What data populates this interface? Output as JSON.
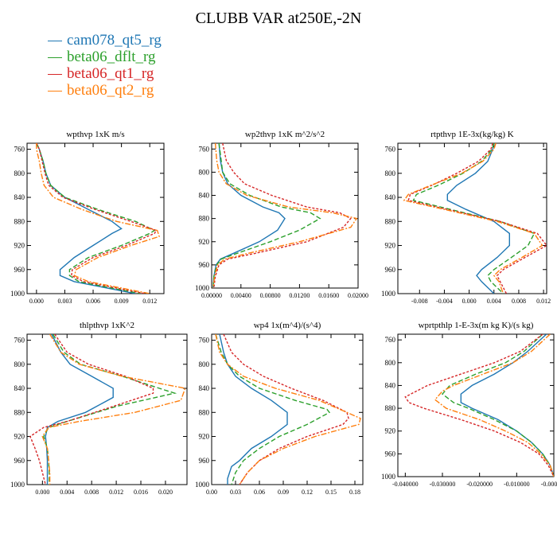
{
  "title": "CLUBB VAR at250E,-2N",
  "colors": {
    "cam078_qt5_rg": "#1f77b4",
    "beta06_dflt_rg": "#2ca02c",
    "beta06_qt1_rg": "#d62728",
    "beta06_qt2_rg": "#ff7f0e"
  },
  "legend": [
    {
      "name": "cam078_qt5_rg",
      "color": "#1f77b4"
    },
    {
      "name": "beta06_dflt_rg",
      "color": "#2ca02c"
    },
    {
      "name": "beta06_qt1_rg",
      "color": "#d62728"
    },
    {
      "name": "beta06_qt2_rg",
      "color": "#ff7f0e"
    }
  ],
  "chart_data": [
    {
      "type": "line",
      "title": "wpthvp   1xK m/s",
      "xlim": [
        -0.001,
        0.0135
      ],
      "xticks": [
        0.0,
        0.003,
        0.006,
        0.009,
        0.012
      ],
      "xticklabels": [
        "0.000",
        "0.003",
        "0.006",
        "0.009",
        "0.012"
      ],
      "ylim": [
        1000,
        750
      ],
      "yticks": [
        760,
        800,
        840,
        880,
        920,
        960,
        1000
      ],
      "series": [
        {
          "name": "cam078_qt5_rg",
          "p": [
            750,
            760,
            780,
            800,
            820,
            840,
            860,
            880,
            892,
            900,
            920,
            940,
            960,
            970,
            980,
            1000
          ],
          "x": [
            0.0,
            0.0003,
            0.0007,
            0.001,
            0.0015,
            0.003,
            0.0055,
            0.008,
            0.009,
            0.008,
            0.006,
            0.004,
            0.0025,
            0.0025,
            0.004,
            0.0105
          ]
        },
        {
          "name": "beta06_dflt_rg",
          "p": [
            750,
            760,
            780,
            800,
            820,
            840,
            860,
            880,
            895,
            900,
            920,
            940,
            960,
            970,
            980,
            1000
          ],
          "x": [
            0.0,
            0.0003,
            0.0007,
            0.001,
            0.0015,
            0.003,
            0.0065,
            0.0105,
            0.0125,
            0.012,
            0.009,
            0.0055,
            0.0035,
            0.0035,
            0.0045,
            0.011
          ]
        },
        {
          "name": "beta06_qt1_rg",
          "p": [
            750,
            760,
            780,
            800,
            820,
            840,
            860,
            880,
            895,
            900,
            920,
            940,
            960,
            970,
            980,
            1000
          ],
          "x": [
            0.0,
            0.0003,
            0.0006,
            0.0009,
            0.0013,
            0.0028,
            0.0062,
            0.01,
            0.0127,
            0.0125,
            0.0095,
            0.006,
            0.0038,
            0.0037,
            0.005,
            0.0115
          ]
        },
        {
          "name": "beta06_qt2_rg",
          "p": [
            750,
            760,
            780,
            800,
            820,
            840,
            860,
            880,
            895,
            905,
            920,
            940,
            960,
            970,
            980,
            1000
          ],
          "x": [
            0.0,
            0.0,
            0.0003,
            0.0005,
            0.0008,
            0.0018,
            0.0048,
            0.0085,
            0.0128,
            0.013,
            0.01,
            0.0065,
            0.0042,
            0.004,
            0.0055,
            0.012
          ]
        }
      ]
    },
    {
      "type": "line",
      "title": "wp2thvp   1xK m^2/s^2",
      "xlim": [
        0.0,
        0.02
      ],
      "xticks": [
        0.0,
        0.004,
        0.008,
        0.012,
        0.016,
        0.02
      ],
      "xticklabels": [
        "0.00000",
        "0.00400",
        "0.00800",
        "0.01200",
        "0.01600",
        "0.02000"
      ],
      "ylim": [
        1000,
        750
      ],
      "yticks": [
        760,
        800,
        840,
        880,
        920,
        960,
        1000
      ],
      "series": [
        {
          "name": "cam078_qt5_rg",
          "p": [
            750,
            780,
            800,
            820,
            840,
            860,
            870,
            880,
            900,
            920,
            940,
            950,
            960,
            980,
            1000
          ],
          "x": [
            0.001,
            0.0012,
            0.0015,
            0.0022,
            0.004,
            0.007,
            0.0092,
            0.01,
            0.009,
            0.0065,
            0.003,
            0.0012,
            0.0006,
            0.0003,
            0.0002
          ]
        },
        {
          "name": "beta06_dflt_rg",
          "p": [
            750,
            780,
            800,
            820,
            840,
            860,
            870,
            880,
            900,
            920,
            940,
            950,
            960,
            980,
            1000
          ],
          "x": [
            0.001,
            0.0013,
            0.0015,
            0.0025,
            0.0052,
            0.0095,
            0.0135,
            0.0148,
            0.012,
            0.008,
            0.0035,
            0.0013,
            0.0007,
            0.0003,
            0.0002
          ]
        },
        {
          "name": "beta06_qt1_rg",
          "p": [
            750,
            780,
            800,
            820,
            840,
            860,
            870,
            880,
            895,
            920,
            940,
            950,
            960,
            980,
            1000
          ],
          "x": [
            0.0015,
            0.002,
            0.003,
            0.0045,
            0.0082,
            0.013,
            0.0175,
            0.019,
            0.018,
            0.013,
            0.006,
            0.0022,
            0.001,
            0.0005,
            0.0003
          ]
        },
        {
          "name": "beta06_qt2_rg",
          "p": [
            750,
            780,
            800,
            820,
            840,
            860,
            870,
            880,
            895,
            920,
            940,
            950,
            960,
            980,
            1000
          ],
          "x": [
            0.0005,
            0.0007,
            0.001,
            0.002,
            0.0048,
            0.0105,
            0.0165,
            0.0198,
            0.019,
            0.012,
            0.005,
            0.0018,
            0.0008,
            0.0004,
            0.0002
          ]
        }
      ]
    },
    {
      "type": "line",
      "title": "rtpthvp   1E-3x(kg/kg) K",
      "xlim": [
        -0.0115,
        0.0125
      ],
      "xticks": [
        -0.008,
        -0.004,
        0.0,
        0.004,
        0.008,
        0.012
      ],
      "xticklabels": [
        "-0.008",
        "-0.004",
        "0.000",
        "0.004",
        "0.008",
        "0.012"
      ],
      "ylim": [
        1000,
        750
      ],
      "yticks": [
        760,
        800,
        840,
        880,
        920,
        960,
        1000
      ],
      "series": [
        {
          "name": "cam078_qt5_rg",
          "p": [
            750,
            760,
            780,
            800,
            820,
            835,
            845,
            860,
            880,
            900,
            920,
            940,
            960,
            970,
            980,
            1000
          ],
          "x": [
            0.004,
            0.0038,
            0.003,
            0.001,
            -0.002,
            -0.0035,
            -0.0035,
            -0.0005,
            0.004,
            0.0065,
            0.0065,
            0.0045,
            0.002,
            0.0012,
            0.002,
            0.004
          ]
        },
        {
          "name": "beta06_dflt_rg",
          "p": [
            750,
            760,
            780,
            800,
            820,
            835,
            845,
            860,
            880,
            900,
            920,
            940,
            960,
            970,
            980,
            1000
          ],
          "x": [
            0.004,
            0.0037,
            0.002,
            -0.001,
            -0.005,
            -0.0085,
            -0.009,
            -0.003,
            0.005,
            0.0105,
            0.0095,
            0.0068,
            0.004,
            0.003,
            0.0035,
            0.0055
          ]
        },
        {
          "name": "beta06_qt1_rg",
          "p": [
            750,
            760,
            780,
            800,
            820,
            835,
            845,
            860,
            880,
            900,
            920,
            940,
            960,
            970,
            980,
            1000
          ],
          "x": [
            0.0038,
            0.0035,
            0.0015,
            -0.002,
            -0.006,
            -0.0095,
            -0.0098,
            -0.0035,
            0.005,
            0.011,
            0.0125,
            0.009,
            0.0055,
            0.0045,
            0.005,
            0.006
          ]
        },
        {
          "name": "beta06_qt2_rg",
          "p": [
            750,
            760,
            780,
            800,
            820,
            835,
            845,
            860,
            880,
            900,
            920,
            940,
            960,
            970,
            980,
            1000
          ],
          "x": [
            0.0043,
            0.004,
            0.0022,
            -0.0012,
            -0.0062,
            -0.0098,
            -0.0105,
            -0.004,
            0.0045,
            0.0105,
            0.0118,
            0.0085,
            0.005,
            0.004,
            0.0048,
            0.0055
          ]
        }
      ]
    },
    {
      "type": "line",
      "title": "thlpthvp   1xK^2",
      "xlim": [
        -0.0025,
        0.0235
      ],
      "xticks": [
        0.0,
        0.004,
        0.008,
        0.012,
        0.016,
        0.02
      ],
      "xticklabels": [
        "0.000",
        "0.004",
        "0.008",
        "0.012",
        "0.016",
        "0.020"
      ],
      "ylim": [
        1000,
        750
      ],
      "yticks": [
        760,
        800,
        840,
        880,
        920,
        960,
        1000
      ],
      "series": [
        {
          "name": "cam078_qt5_rg",
          "p": [
            750,
            780,
            800,
            820,
            840,
            855,
            880,
            895,
            905,
            920,
            940,
            960,
            980,
            1000
          ],
          "x": [
            0.0015,
            0.003,
            0.0045,
            0.008,
            0.0115,
            0.0115,
            0.007,
            0.0025,
            0.0008,
            0.0005,
            0.0007,
            0.0008,
            0.0008,
            0.0008
          ]
        },
        {
          "name": "beta06_dflt_rg",
          "p": [
            750,
            780,
            800,
            820,
            840,
            848,
            870,
            895,
            905,
            920,
            940,
            960,
            980,
            1000
          ],
          "x": [
            0.0017,
            0.0035,
            0.0062,
            0.013,
            0.019,
            0.0215,
            0.012,
            0.004,
            0.001,
            0.0002,
            0.0008,
            0.001,
            0.0011,
            0.0011
          ]
        },
        {
          "name": "beta06_qt1_rg",
          "p": [
            750,
            780,
            800,
            820,
            840,
            848,
            870,
            895,
            905,
            920,
            940,
            960,
            980,
            1000
          ],
          "x": [
            0.002,
            0.004,
            0.0075,
            0.0135,
            0.018,
            0.018,
            0.0115,
            0.004,
            0.0002,
            -0.002,
            -0.0012,
            -0.0005,
            0.0,
            0.0005
          ]
        },
        {
          "name": "beta06_qt2_rg",
          "p": [
            750,
            780,
            800,
            820,
            840,
            860,
            880,
            895,
            905,
            920,
            940,
            960,
            980,
            1000
          ],
          "x": [
            0.0012,
            0.003,
            0.006,
            0.013,
            0.0232,
            0.0225,
            0.015,
            0.006,
            0.001,
            0.0,
            0.0008,
            0.001,
            0.0012,
            0.0012
          ]
        }
      ]
    },
    {
      "type": "line",
      "title": "wp4   1x(m^4)/(s^4)",
      "xlim": [
        0.0,
        0.19
      ],
      "xticks": [
        0.0,
        0.03,
        0.06,
        0.09,
        0.12,
        0.15,
        0.18
      ],
      "xticklabels": [
        "0.00",
        "0.03",
        "0.06",
        "0.09",
        "0.12",
        "0.15",
        "0.18"
      ],
      "ylim": [
        1000,
        750
      ],
      "yticks": [
        760,
        800,
        840,
        880,
        920,
        960,
        1000
      ],
      "series": [
        {
          "name": "cam078_qt5_rg",
          "p": [
            750,
            780,
            800,
            820,
            840,
            860,
            880,
            900,
            920,
            940,
            960,
            970,
            990,
            1000
          ],
          "x": [
            0.01,
            0.015,
            0.02,
            0.03,
            0.05,
            0.075,
            0.095,
            0.095,
            0.075,
            0.05,
            0.035,
            0.025,
            0.02,
            0.02
          ]
        },
        {
          "name": "beta06_dflt_rg",
          "p": [
            750,
            780,
            800,
            820,
            840,
            860,
            875,
            880,
            900,
            920,
            940,
            960,
            980,
            1000
          ],
          "x": [
            0.005,
            0.012,
            0.02,
            0.035,
            0.06,
            0.105,
            0.145,
            0.148,
            0.12,
            0.085,
            0.06,
            0.04,
            0.03,
            0.025
          ]
        },
        {
          "name": "beta06_qt1_rg",
          "p": [
            750,
            780,
            800,
            820,
            840,
            860,
            880,
            890,
            900,
            920,
            940,
            960,
            980,
            1000
          ],
          "x": [
            0.015,
            0.025,
            0.04,
            0.065,
            0.1,
            0.14,
            0.17,
            0.172,
            0.165,
            0.12,
            0.085,
            0.06,
            0.045,
            0.035
          ]
        },
        {
          "name": "beta06_qt2_rg",
          "p": [
            750,
            780,
            800,
            820,
            840,
            860,
            880,
            890,
            900,
            920,
            940,
            960,
            980,
            1000
          ],
          "x": [
            0.005,
            0.01,
            0.02,
            0.04,
            0.08,
            0.135,
            0.17,
            0.187,
            0.185,
            0.13,
            0.09,
            0.06,
            0.045,
            0.035
          ]
        }
      ]
    },
    {
      "type": "line",
      "title": "wprtpthlp   1-E-3x(m kg K)/(s kg)",
      "xlim": [
        -0.042,
        0.0
      ],
      "xticks": [
        -0.04,
        -0.03,
        -0.02,
        -0.01,
        0.0
      ],
      "xticklabels": [
        "-0.040000",
        "-0.030000",
        "-0.020000",
        "-0.010000",
        "-0.000000"
      ],
      "ylim": [
        1000,
        750
      ],
      "yticks": [
        760,
        800,
        840,
        880,
        920,
        960,
        1000
      ],
      "series": [
        {
          "name": "cam078_qt5_rg",
          "p": [
            750,
            780,
            800,
            820,
            840,
            855,
            870,
            880,
            900,
            920,
            940,
            960,
            980,
            1000
          ],
          "x": [
            -0.002,
            -0.007,
            -0.011,
            -0.016,
            -0.022,
            -0.025,
            -0.025,
            -0.022,
            -0.015,
            -0.01,
            -0.006,
            -0.003,
            -0.001,
            0.0
          ]
        },
        {
          "name": "beta06_dflt_rg",
          "p": [
            750,
            780,
            800,
            820,
            840,
            855,
            870,
            880,
            900,
            920,
            940,
            960,
            980,
            1000
          ],
          "x": [
            -0.003,
            -0.008,
            -0.013,
            -0.021,
            -0.028,
            -0.03,
            -0.027,
            -0.023,
            -0.016,
            -0.01,
            -0.006,
            -0.003,
            -0.001,
            0.0
          ]
        },
        {
          "name": "beta06_qt1_rg",
          "p": [
            750,
            780,
            800,
            820,
            840,
            860,
            870,
            880,
            900,
            920,
            940,
            960,
            980,
            1000
          ],
          "x": [
            -0.003,
            -0.009,
            -0.016,
            -0.025,
            -0.034,
            -0.04,
            -0.039,
            -0.035,
            -0.025,
            -0.016,
            -0.009,
            -0.004,
            -0.0015,
            0.0
          ]
        },
        {
          "name": "beta06_qt2_rg",
          "p": [
            750,
            780,
            800,
            820,
            840,
            850,
            865,
            880,
            900,
            920,
            940,
            960,
            980,
            1000
          ],
          "x": [
            -0.001,
            -0.006,
            -0.011,
            -0.019,
            -0.027,
            -0.03,
            -0.032,
            -0.029,
            -0.02,
            -0.013,
            -0.007,
            -0.0035,
            -0.001,
            0.0
          ]
        }
      ]
    }
  ]
}
